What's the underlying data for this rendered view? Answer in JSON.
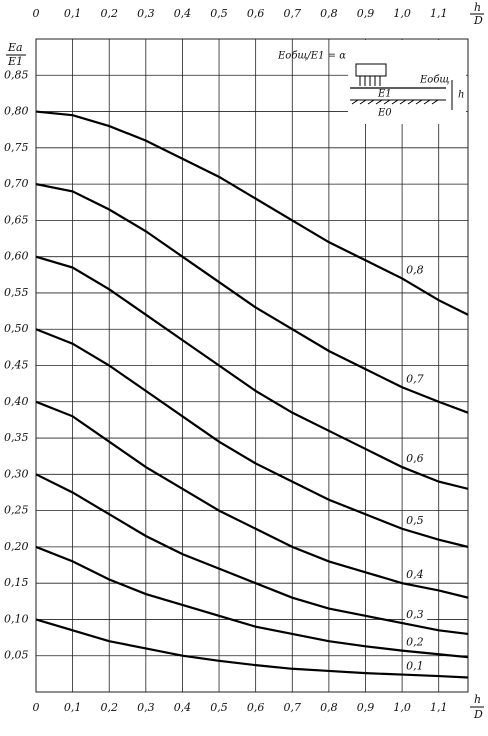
{
  "chart_data": {
    "type": "line",
    "y_label_top": "Eа",
    "y_label_bottom": "E1",
    "x_label_top": "h",
    "x_label_bottom": "D",
    "legend_formula": "Eобщ/E1 = α",
    "inset_labels": {
      "e_total": "Eобщ",
      "h": "h",
      "e1": "E1",
      "e0": "E0"
    },
    "x": [
      0,
      0.1,
      0.2,
      0.3,
      0.4,
      0.5,
      0.6,
      0.7,
      0.8,
      0.9,
      1.0,
      1.1,
      1.18
    ],
    "xlim": [
      0,
      1.18
    ],
    "ylim": [
      0,
      0.9
    ],
    "xticks": [
      {
        "value": 0,
        "label": "0"
      },
      {
        "value": 0.1,
        "label": "0,1"
      },
      {
        "value": 0.2,
        "label": "0,2"
      },
      {
        "value": 0.3,
        "label": "0,3"
      },
      {
        "value": 0.4,
        "label": "0,4"
      },
      {
        "value": 0.5,
        "label": "0,5"
      },
      {
        "value": 0.6,
        "label": "0,6"
      },
      {
        "value": 0.7,
        "label": "0,7"
      },
      {
        "value": 0.8,
        "label": "0,8"
      },
      {
        "value": 0.9,
        "label": "0,9"
      },
      {
        "value": 1.0,
        "label": "1,0"
      },
      {
        "value": 1.1,
        "label": "1,1"
      }
    ],
    "yticks": [
      {
        "value": 0.05,
        "label": "0,05"
      },
      {
        "value": 0.1,
        "label": "0,10"
      },
      {
        "value": 0.15,
        "label": "0,15"
      },
      {
        "value": 0.2,
        "label": "0,20"
      },
      {
        "value": 0.25,
        "label": "0,25"
      },
      {
        "value": 0.3,
        "label": "0,30"
      },
      {
        "value": 0.35,
        "label": "0,35"
      },
      {
        "value": 0.4,
        "label": "0,40"
      },
      {
        "value": 0.45,
        "label": "0,45"
      },
      {
        "value": 0.5,
        "label": "0,50"
      },
      {
        "value": 0.55,
        "label": "0,55"
      },
      {
        "value": 0.6,
        "label": "0,60"
      },
      {
        "value": 0.65,
        "label": "0,65"
      },
      {
        "value": 0.7,
        "label": "0,70"
      },
      {
        "value": 0.75,
        "label": "0,75"
      },
      {
        "value": 0.8,
        "label": "0,80"
      },
      {
        "value": 0.85,
        "label": "0,85"
      }
    ],
    "grid": true,
    "series": [
      {
        "name": "0,8",
        "color": "#000000",
        "values": [
          0.8,
          0.795,
          0.78,
          0.76,
          0.735,
          0.71,
          0.68,
          0.65,
          0.62,
          0.595,
          0.57,
          0.54,
          0.52
        ]
      },
      {
        "name": "0,7",
        "color": "#000000",
        "values": [
          0.7,
          0.69,
          0.665,
          0.635,
          0.6,
          0.565,
          0.53,
          0.5,
          0.47,
          0.445,
          0.42,
          0.4,
          0.385
        ]
      },
      {
        "name": "0,6",
        "color": "#000000",
        "values": [
          0.6,
          0.585,
          0.555,
          0.52,
          0.485,
          0.45,
          0.415,
          0.385,
          0.36,
          0.335,
          0.31,
          0.29,
          0.28
        ]
      },
      {
        "name": "0,5",
        "color": "#000000",
        "values": [
          0.5,
          0.48,
          0.45,
          0.415,
          0.38,
          0.345,
          0.315,
          0.29,
          0.265,
          0.245,
          0.225,
          0.21,
          0.2
        ]
      },
      {
        "name": "0,4",
        "color": "#000000",
        "values": [
          0.4,
          0.38,
          0.345,
          0.31,
          0.28,
          0.25,
          0.225,
          0.2,
          0.18,
          0.165,
          0.15,
          0.14,
          0.13
        ]
      },
      {
        "name": "0,3",
        "color": "#000000",
        "values": [
          0.3,
          0.275,
          0.245,
          0.215,
          0.19,
          0.17,
          0.15,
          0.13,
          0.115,
          0.105,
          0.095,
          0.085,
          0.08
        ]
      },
      {
        "name": "0,2",
        "color": "#000000",
        "values": [
          0.2,
          0.18,
          0.155,
          0.135,
          0.12,
          0.105,
          0.09,
          0.08,
          0.07,
          0.063,
          0.057,
          0.052,
          0.048
        ]
      },
      {
        "name": "0,1",
        "color": "#000000",
        "values": [
          0.1,
          0.085,
          0.07,
          0.06,
          0.05,
          0.043,
          0.037,
          0.032,
          0.029,
          0.026,
          0.024,
          0.022,
          0.02
        ]
      }
    ]
  }
}
